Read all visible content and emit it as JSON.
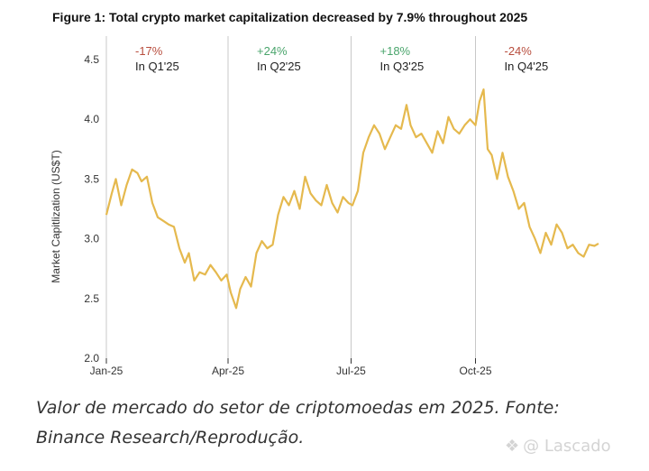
{
  "figure_title": "Figure 1: Total crypto market capitalization decreased by 7.9% throughout 2025",
  "caption": {
    "line1": "Valor de mercado do setor de criptomoedas em 2025. Fonte:",
    "line2": "Binance Research/Reprodução."
  },
  "watermark": {
    "icon": "diamond-logo-icon",
    "text": "@ Lascado"
  },
  "colors": {
    "line": "#e5b94e",
    "positive": "#4aa56c",
    "negative": "#b84e3e",
    "divider": "#c8c8c8",
    "axis": "#333333"
  },
  "chart_data": {
    "type": "line",
    "title": "Figure 1: Total crypto market capitalization decreased by 7.9% throughout 2025",
    "xlabel": "",
    "ylabel": "Market Capitlization (US$T)",
    "ylim": [
      2.0,
      4.5
    ],
    "yticks": [
      "2.0",
      "2.5",
      "3.0",
      "3.5",
      "4.0",
      "4.5"
    ],
    "xlim": [
      "2025-01-01",
      "2025-12-31"
    ],
    "xticks": [
      {
        "label": "Jan-25",
        "date": "2025-01-01"
      },
      {
        "label": "Apr-25",
        "date": "2025-04-01"
      },
      {
        "label": "Jul-25",
        "date": "2025-07-01"
      },
      {
        "label": "Oct-25",
        "date": "2025-10-01"
      }
    ],
    "grid": false,
    "quarter_annotations": [
      {
        "change": "-17%",
        "label": "In Q1'25",
        "sign": "negative"
      },
      {
        "change": "+24%",
        "label": "In Q2'25",
        "sign": "positive"
      },
      {
        "change": "+18%",
        "label": "In Q3'25",
        "sign": "positive"
      },
      {
        "change": "-24%",
        "label": "In Q4'25",
        "sign": "negative"
      }
    ],
    "series": [
      {
        "x": [
          "2025-01-01",
          "2025-01-05",
          "2025-01-08",
          "2025-01-12",
          "2025-01-16",
          "2025-01-20",
          "2025-01-24",
          "2025-01-27",
          "2025-01-31",
          "2025-02-04",
          "2025-02-08",
          "2025-02-12",
          "2025-02-16",
          "2025-02-20",
          "2025-02-24",
          "2025-02-28",
          "2025-03-03",
          "2025-03-07",
          "2025-03-11",
          "2025-03-15",
          "2025-03-19",
          "2025-03-23",
          "2025-03-27",
          "2025-03-31",
          "2025-04-03",
          "2025-04-07",
          "2025-04-10",
          "2025-04-14",
          "2025-04-18",
          "2025-04-22",
          "2025-04-26",
          "2025-04-30",
          "2025-05-04",
          "2025-05-08",
          "2025-05-12",
          "2025-05-16",
          "2025-05-20",
          "2025-05-24",
          "2025-05-28",
          "2025-06-01",
          "2025-06-05",
          "2025-06-09",
          "2025-06-13",
          "2025-06-17",
          "2025-06-21",
          "2025-06-25",
          "2025-06-29",
          "2025-07-02",
          "2025-07-06",
          "2025-07-10",
          "2025-07-14",
          "2025-07-18",
          "2025-07-22",
          "2025-07-26",
          "2025-07-30",
          "2025-08-03",
          "2025-08-07",
          "2025-08-11",
          "2025-08-14",
          "2025-08-18",
          "2025-08-22",
          "2025-08-26",
          "2025-08-30",
          "2025-09-03",
          "2025-09-07",
          "2025-09-11",
          "2025-09-15",
          "2025-09-19",
          "2025-09-23",
          "2025-09-27",
          "2025-10-01",
          "2025-10-04",
          "2025-10-07",
          "2025-10-10",
          "2025-10-13",
          "2025-10-17",
          "2025-10-21",
          "2025-10-25",
          "2025-10-29",
          "2025-11-02",
          "2025-11-06",
          "2025-11-10",
          "2025-11-14",
          "2025-11-18",
          "2025-11-22",
          "2025-11-26",
          "2025-11-30",
          "2025-12-04",
          "2025-12-08",
          "2025-12-12",
          "2025-12-16",
          "2025-12-20",
          "2025-12-24",
          "2025-12-28",
          "2025-12-31"
        ],
        "y": [
          3.2,
          3.38,
          3.5,
          3.28,
          3.45,
          3.58,
          3.55,
          3.48,
          3.52,
          3.3,
          3.18,
          3.15,
          3.12,
          3.1,
          2.92,
          2.8,
          2.88,
          2.65,
          2.72,
          2.7,
          2.78,
          2.72,
          2.65,
          2.7,
          2.55,
          2.42,
          2.58,
          2.68,
          2.6,
          2.88,
          2.98,
          2.92,
          2.95,
          3.2,
          3.35,
          3.28,
          3.4,
          3.25,
          3.52,
          3.38,
          3.32,
          3.28,
          3.45,
          3.3,
          3.22,
          3.35,
          3.3,
          3.28,
          3.4,
          3.72,
          3.85,
          3.95,
          3.88,
          3.75,
          3.85,
          3.95,
          3.92,
          4.12,
          3.95,
          3.85,
          3.88,
          3.8,
          3.72,
          3.9,
          3.8,
          4.02,
          3.92,
          3.88,
          3.95,
          4.0,
          3.95,
          4.15,
          4.25,
          3.75,
          3.7,
          3.5,
          3.72,
          3.52,
          3.4,
          3.25,
          3.3,
          3.1,
          3.0,
          2.88,
          3.05,
          2.95,
          3.12,
          3.05,
          2.92,
          2.95,
          2.88,
          2.85,
          2.95,
          2.94,
          2.96
        ]
      }
    ]
  }
}
